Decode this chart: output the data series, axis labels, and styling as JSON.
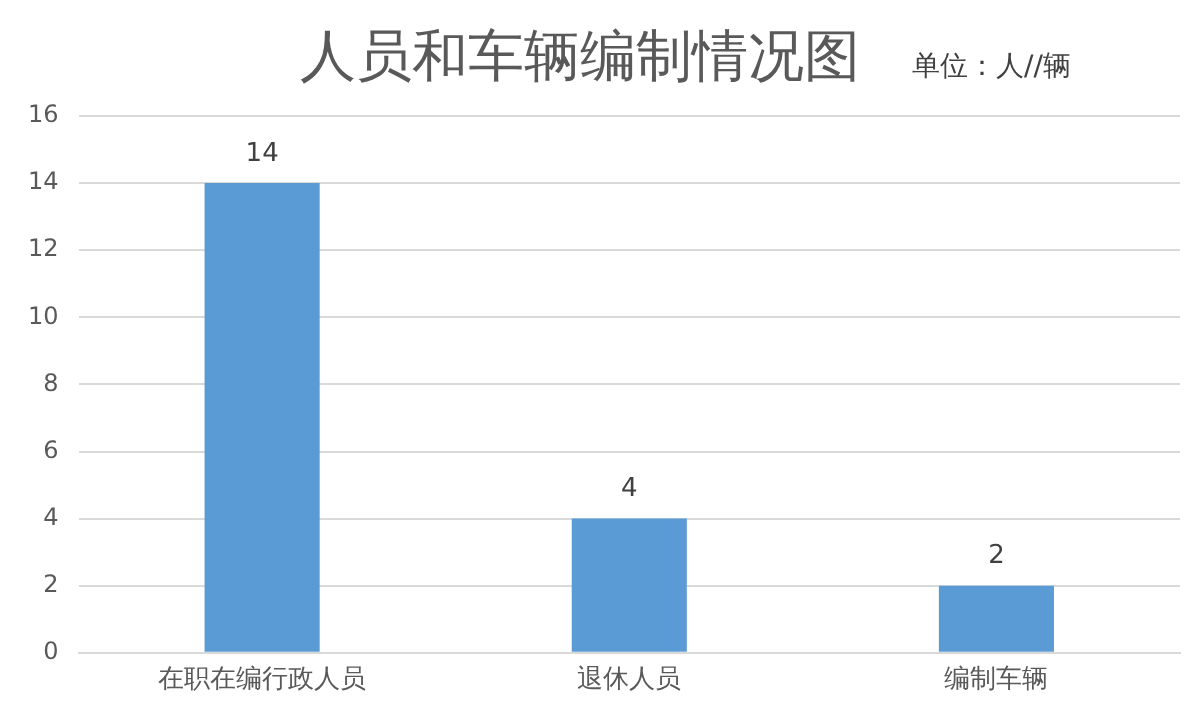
{
  "chart_data": {
    "type": "bar",
    "title": "人员和车辆编制情况图",
    "subtitle": "单位：人//辆",
    "categories": [
      "在职在编行政人员",
      "退休人员",
      "编制车辆"
    ],
    "values": [
      14,
      4,
      2
    ],
    "color": "#5b9bd5",
    "ylim": [
      0,
      16
    ],
    "yticks": [
      0,
      2,
      4,
      6,
      8,
      10,
      12,
      14,
      16
    ],
    "grid": "y",
    "data_labels": true
  }
}
